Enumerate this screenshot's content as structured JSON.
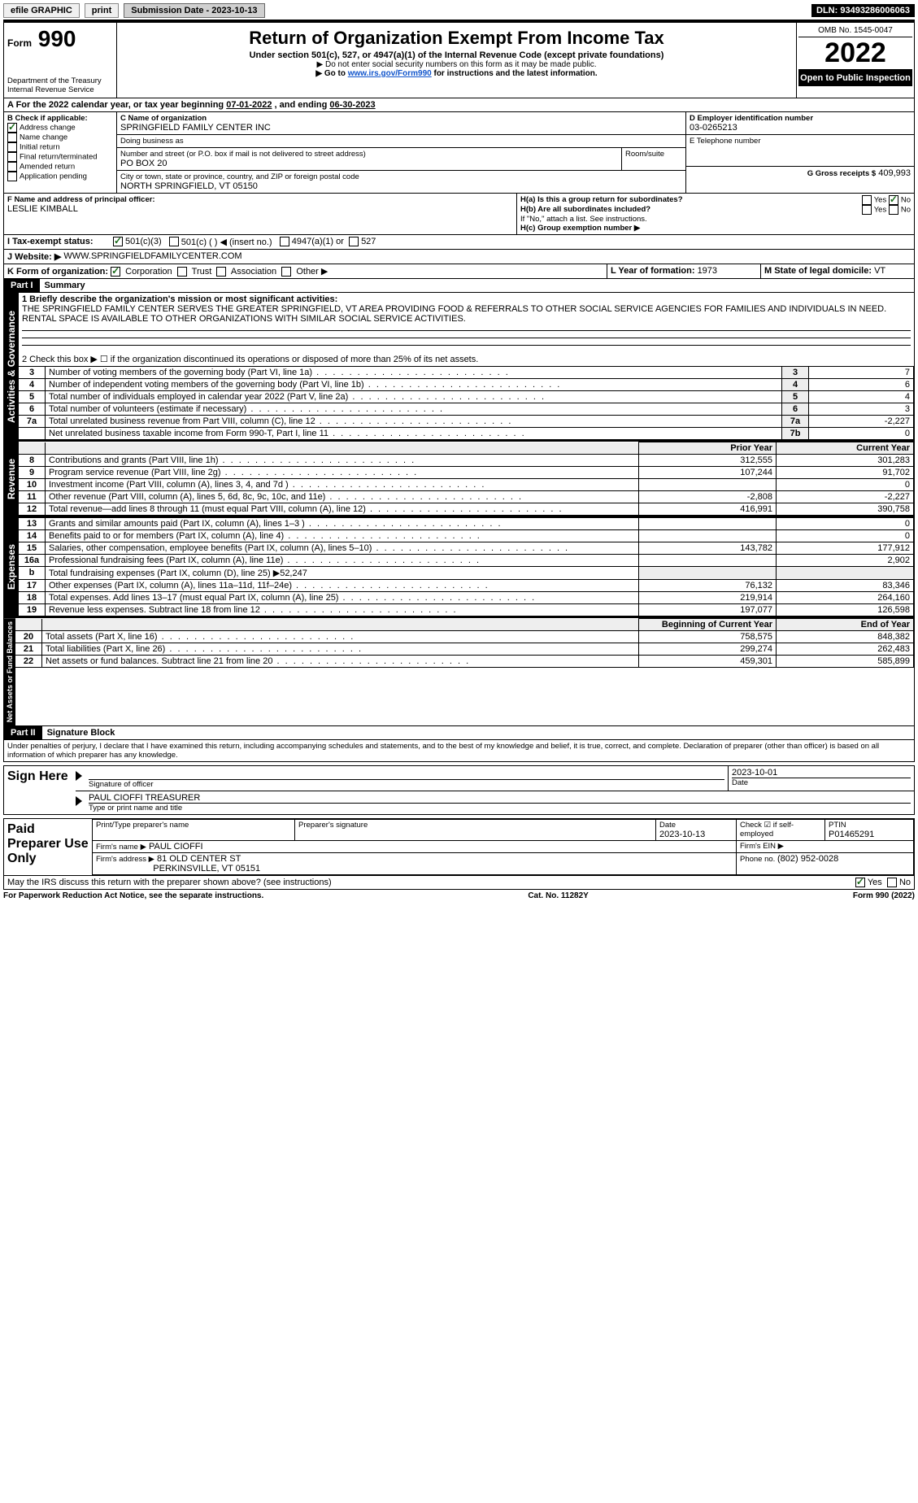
{
  "topbar": {
    "efile": "efile GRAPHIC",
    "print": "print",
    "subm_label": "Submission Date - ",
    "subm_date": "2023-10-13",
    "dln_label": "DLN: ",
    "dln": "93493286006063"
  },
  "header": {
    "form_small": "Form",
    "form_num": "990",
    "title": "Return of Organization Exempt From Income Tax",
    "sub1": "Under section 501(c), 527, or 4947(a)(1) of the Internal Revenue Code (except private foundations)",
    "sub2": "▶ Do not enter social security numbers on this form as it may be made public.",
    "sub3_pre": "▶ Go to ",
    "sub3_link": "www.irs.gov/Form990",
    "sub3_post": " for instructions and the latest information.",
    "dept": "Department of the Treasury",
    "irs": "Internal Revenue Service",
    "omb": "OMB No. 1545-0047",
    "year": "2022",
    "open": "Open to Public Inspection"
  },
  "A": {
    "label": "A For the 2022 calendar year, or tax year beginning ",
    "begin": "07-01-2022",
    "mid": " , and ending ",
    "end": "06-30-2023"
  },
  "B": {
    "title": "B Check if applicable:",
    "items": [
      "Address change",
      "Name change",
      "Initial return",
      "Final return/terminated",
      "Amended return",
      "Application pending"
    ]
  },
  "C": {
    "name_lbl": "C Name of organization",
    "name": "SPRINGFIELD FAMILY CENTER INC",
    "dba_lbl": "Doing business as",
    "dba": "",
    "addr_lbl": "Number and street (or P.O. box if mail is not delivered to street address)",
    "room_lbl": "Room/suite",
    "addr": "PO BOX 20",
    "city_lbl": "City or town, state or province, country, and ZIP or foreign postal code",
    "city": "NORTH SPRINGFIELD, VT  05150"
  },
  "D": {
    "lbl": "D Employer identification number",
    "val": "03-0265213"
  },
  "E": {
    "lbl": "E Telephone number",
    "val": ""
  },
  "G": {
    "lbl": "G Gross receipts $",
    "val": "409,993"
  },
  "F": {
    "lbl": "F  Name and address of principal officer:",
    "val": "LESLIE KIMBALL"
  },
  "H": {
    "a": "H(a)  Is this a group return for subordinates?",
    "yes": "Yes",
    "no": "No",
    "b": "H(b)  Are all subordinates included?",
    "note": "If \"No,\" attach a list. See instructions.",
    "c": "H(c)  Group exemption number ▶"
  },
  "I": {
    "lbl": "I  Tax-exempt status:",
    "opts": [
      "501(c)(3)",
      "501(c) (  ) ◀ (insert no.)",
      "4947(a)(1) or",
      "527"
    ]
  },
  "J": {
    "lbl": "J  Website: ▶",
    "val": "WWW.SPRINGFIELDFAMILYCENTER.COM"
  },
  "K": {
    "lbl": "K Form of organization:",
    "opts": [
      "Corporation",
      "Trust",
      "Association",
      "Other ▶"
    ]
  },
  "L": {
    "lbl": "L Year of formation: ",
    "val": "1973"
  },
  "M": {
    "lbl": "M State of legal domicile: ",
    "val": "VT"
  },
  "part1": {
    "hdr": "Part I",
    "title": "Summary"
  },
  "summary": {
    "line1": "1 Briefly describe the organization's mission or most significant activities:",
    "mission": "THE SPRINGFIELD FAMILY CENTER SERVES THE GREATER SPRINGFIELD, VT AREA PROVIDING FOOD & REFERRALS TO OTHER SOCIAL SERVICE AGENCIES FOR FAMILIES AND INDIVIDUALS IN NEED. RENTAL SPACE IS AVAILABLE TO OTHER ORGANIZATIONS WITH SIMILAR SOCIAL SERVICE ACTIVITIES.",
    "line2": "2 Check this box ▶ ☐  if the organization discontinued its operations or disposed of more than 25% of its net assets."
  },
  "gov": {
    "tab": "Activities & Governance",
    "rows": [
      {
        "n": "3",
        "txt": "Number of voting members of the governing body (Part VI, line 1a)",
        "box": "3",
        "val": "7"
      },
      {
        "n": "4",
        "txt": "Number of independent voting members of the governing body (Part VI, line 1b)",
        "box": "4",
        "val": "6"
      },
      {
        "n": "5",
        "txt": "Total number of individuals employed in calendar year 2022 (Part V, line 2a)",
        "box": "5",
        "val": "4"
      },
      {
        "n": "6",
        "txt": "Total number of volunteers (estimate if necessary)",
        "box": "6",
        "val": "3"
      },
      {
        "n": "7a",
        "txt": "Total unrelated business revenue from Part VIII, column (C), line 12",
        "box": "7a",
        "val": "-2,227"
      },
      {
        "n": "",
        "txt": "Net unrelated business taxable income from Form 990-T, Part I, line 11",
        "box": "7b",
        "val": "0"
      }
    ]
  },
  "rev": {
    "tab": "Revenue",
    "hdr_prior": "Prior Year",
    "hdr_cur": "Current Year",
    "rows": [
      {
        "n": "8",
        "txt": "Contributions and grants (Part VIII, line 1h)",
        "py": "312,555",
        "cy": "301,283"
      },
      {
        "n": "9",
        "txt": "Program service revenue (Part VIII, line 2g)",
        "py": "107,244",
        "cy": "91,702"
      },
      {
        "n": "10",
        "txt": "Investment income (Part VIII, column (A), lines 3, 4, and 7d )",
        "py": "",
        "cy": "0"
      },
      {
        "n": "11",
        "txt": "Other revenue (Part VIII, column (A), lines 5, 6d, 8c, 9c, 10c, and 11e)",
        "py": "-2,808",
        "cy": "-2,227"
      },
      {
        "n": "12",
        "txt": "Total revenue—add lines 8 through 11 (must equal Part VIII, column (A), line 12)",
        "py": "416,991",
        "cy": "390,758"
      }
    ]
  },
  "exp": {
    "tab": "Expenses",
    "rows": [
      {
        "n": "13",
        "txt": "Grants and similar amounts paid (Part IX, column (A), lines 1–3 )",
        "py": "",
        "cy": "0"
      },
      {
        "n": "14",
        "txt": "Benefits paid to or for members (Part IX, column (A), line 4)",
        "py": "",
        "cy": "0"
      },
      {
        "n": "15",
        "txt": "Salaries, other compensation, employee benefits (Part IX, column (A), lines 5–10)",
        "py": "143,782",
        "cy": "177,912"
      },
      {
        "n": "16a",
        "txt": "Professional fundraising fees (Part IX, column (A), line 11e)",
        "py": "",
        "cy": "2,902"
      },
      {
        "n": "b",
        "txt": "Total fundraising expenses (Part IX, column (D), line 25) ▶52,247",
        "py": null,
        "cy": null,
        "shade": true
      },
      {
        "n": "17",
        "txt": "Other expenses (Part IX, column (A), lines 11a–11d, 11f–24e)",
        "py": "76,132",
        "cy": "83,346"
      },
      {
        "n": "18",
        "txt": "Total expenses. Add lines 13–17 (must equal Part IX, column (A), line 25)",
        "py": "219,914",
        "cy": "264,160"
      },
      {
        "n": "19",
        "txt": "Revenue less expenses. Subtract line 18 from line 12",
        "py": "197,077",
        "cy": "126,598"
      }
    ]
  },
  "net": {
    "tab": "Net Assets or Fund Balances",
    "hdr_beg": "Beginning of Current Year",
    "hdr_end": "End of Year",
    "rows": [
      {
        "n": "20",
        "txt": "Total assets (Part X, line 16)",
        "py": "758,575",
        "cy": "848,382"
      },
      {
        "n": "21",
        "txt": "Total liabilities (Part X, line 26)",
        "py": "299,274",
        "cy": "262,483"
      },
      {
        "n": "22",
        "txt": "Net assets or fund balances. Subtract line 21 from line 20",
        "py": "459,301",
        "cy": "585,899"
      }
    ]
  },
  "part2": {
    "hdr": "Part II",
    "title": "Signature Block",
    "decl": "Under penalties of perjury, I declare that I have examined this return, including accompanying schedules and statements, and to the best of my knowledge and belief, it is true, correct, and complete. Declaration of preparer (other than officer) is based on all information of which preparer has any knowledge."
  },
  "sign": {
    "here": "Sign Here",
    "sig_lbl": "Signature of officer",
    "date_val": "2023-10-01",
    "date_lbl": "Date",
    "name": "PAUL CIOFFI TREASURER",
    "name_lbl": "Type or print name and title"
  },
  "paid": {
    "lbl": "Paid Preparer Use Only",
    "c1": "Print/Type preparer's name",
    "c2": "Preparer's signature",
    "c3": "Date",
    "c3v": "2023-10-13",
    "c4": "Check ☑ if self-employed",
    "c5": "PTIN",
    "c5v": "P01465291",
    "firm_lbl": "Firm's name    ▶",
    "firm": "PAUL CIOFFI",
    "ein_lbl": "Firm's EIN ▶",
    "faddr_lbl": "Firm's address ▶",
    "faddr1": "81 OLD CENTER ST",
    "faddr2": "PERKINSVILLE, VT  05151",
    "phone_lbl": "Phone no. ",
    "phone": "(802) 952-0028"
  },
  "discuss": {
    "txt": "May the IRS discuss this return with the preparer shown above? (see instructions)",
    "yes": "Yes",
    "no": "No"
  },
  "footer": {
    "left": "For Paperwork Reduction Act Notice, see the separate instructions.",
    "mid": "Cat. No. 11282Y",
    "right": "Form 990 (2022)"
  }
}
